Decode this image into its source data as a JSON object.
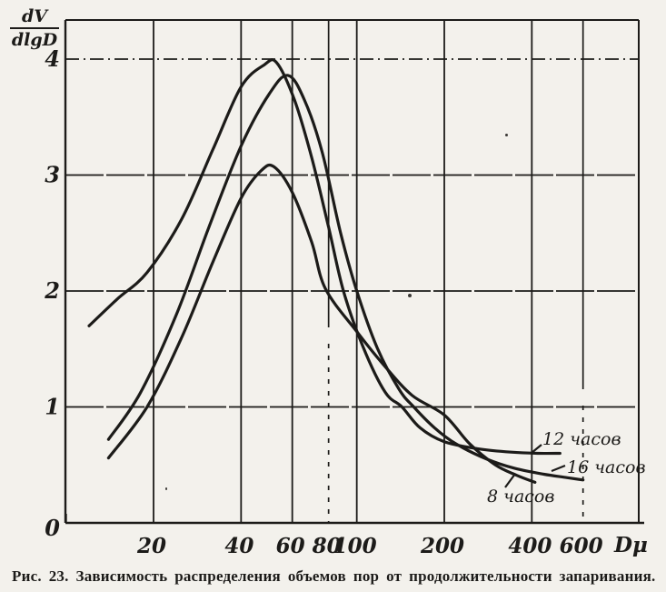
{
  "figure": {
    "paper_color": "#f3f1ec",
    "ink_color": "#1c1b19",
    "y_axis_label": {
      "numerator": "dV",
      "denominator": "dlgD"
    },
    "x_axis_unit": "Dμ",
    "caption": "Рис. 23. Зависимость распределения объемов пор от продолжительности запаривания."
  },
  "chart_data": {
    "type": "line",
    "title": "",
    "xlabel": "Dμ",
    "ylabel": "dV/dlgD",
    "x_scale": "log",
    "xlim": [
      10,
      930
    ],
    "ylim": [
      0,
      4.35
    ],
    "x_ticks": [
      20,
      40,
      60,
      80,
      100,
      200,
      400,
      600
    ],
    "y_ticks": [
      0,
      1,
      2,
      3,
      4
    ],
    "grid": true,
    "legend_position": "inline-labels",
    "series": [
      {
        "name": "12 часов",
        "points": [
          [
            12,
            1.7
          ],
          [
            15,
            1.93
          ],
          [
            19,
            2.16
          ],
          [
            25,
            2.62
          ],
          [
            32,
            3.22
          ],
          [
            40,
            3.76
          ],
          [
            48,
            3.95
          ],
          [
            53,
            3.97
          ],
          [
            61,
            3.65
          ],
          [
            70,
            3.15
          ],
          [
            80,
            2.55
          ],
          [
            90,
            2.0
          ],
          [
            105,
            1.52
          ],
          [
            125,
            1.13
          ],
          [
            143,
            1.0
          ],
          [
            165,
            0.82
          ],
          [
            200,
            0.7
          ],
          [
            260,
            0.64
          ],
          [
            340,
            0.61
          ],
          [
            420,
            0.6
          ],
          [
            500,
            0.6
          ]
        ]
      },
      {
        "name": "16 часов",
        "points": [
          [
            14,
            0.72
          ],
          [
            18,
            1.12
          ],
          [
            24,
            1.8
          ],
          [
            31,
            2.55
          ],
          [
            40,
            3.25
          ],
          [
            50,
            3.7
          ],
          [
            58,
            3.86
          ],
          [
            66,
            3.65
          ],
          [
            76,
            3.2
          ],
          [
            88,
            2.5
          ],
          [
            100,
            2.0
          ],
          [
            118,
            1.5
          ],
          [
            140,
            1.15
          ],
          [
            157,
            1.0
          ],
          [
            185,
            0.82
          ],
          [
            220,
            0.68
          ],
          [
            280,
            0.55
          ],
          [
            350,
            0.47
          ],
          [
            440,
            0.42
          ],
          [
            530,
            0.39
          ],
          [
            600,
            0.37
          ]
        ]
      },
      {
        "name": "8 часов",
        "points": [
          [
            14,
            0.56
          ],
          [
            19,
            1.0
          ],
          [
            25,
            1.6
          ],
          [
            32,
            2.25
          ],
          [
            40,
            2.8
          ],
          [
            47,
            3.04
          ],
          [
            52,
            3.07
          ],
          [
            60,
            2.85
          ],
          [
            70,
            2.42
          ],
          [
            78,
            2.02
          ],
          [
            100,
            1.65
          ],
          [
            125,
            1.35
          ],
          [
            155,
            1.1
          ],
          [
            200,
            0.93
          ],
          [
            245,
            0.68
          ],
          [
            300,
            0.5
          ],
          [
            355,
            0.41
          ],
          [
            410,
            0.35
          ]
        ]
      }
    ]
  }
}
